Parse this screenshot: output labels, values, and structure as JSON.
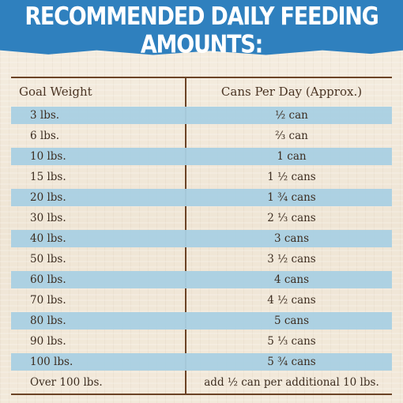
{
  "header": {
    "title": "RECOMMENDED DAILY FEEDING AMOUNTS:"
  },
  "colors": {
    "header_blue": "#2f80be",
    "row_blue": "#a9d0e3",
    "rule_brown": "#6b4325",
    "text_brown": "#3d2d20"
  },
  "table": {
    "headers": {
      "weight": "Goal Weight",
      "cans": "Cans Per Day (Approx.)"
    },
    "rows": [
      {
        "weight": "3 lbs.",
        "cans": "½ can"
      },
      {
        "weight": "6 lbs.",
        "cans": "⅔ can"
      },
      {
        "weight": "10 lbs.",
        "cans": "1 can"
      },
      {
        "weight": "15 lbs.",
        "cans": "1 ½ cans"
      },
      {
        "weight": "20 lbs.",
        "cans": "1 ¾ cans"
      },
      {
        "weight": "30 lbs.",
        "cans": "2 ⅓ cans"
      },
      {
        "weight": "40 lbs.",
        "cans": "3 cans"
      },
      {
        "weight": "50 lbs.",
        "cans": "3 ½ cans"
      },
      {
        "weight": "60 lbs.",
        "cans": "4 cans"
      },
      {
        "weight": "70 lbs.",
        "cans": "4 ½ cans"
      },
      {
        "weight": "80 lbs.",
        "cans": "5 cans"
      },
      {
        "weight": "90 lbs.",
        "cans": "5 ⅓ cans"
      },
      {
        "weight": "100 lbs.",
        "cans": "5 ¾ cans"
      },
      {
        "weight": "Over 100 lbs.",
        "cans": "add ½ can per additional 10 lbs."
      }
    ]
  }
}
